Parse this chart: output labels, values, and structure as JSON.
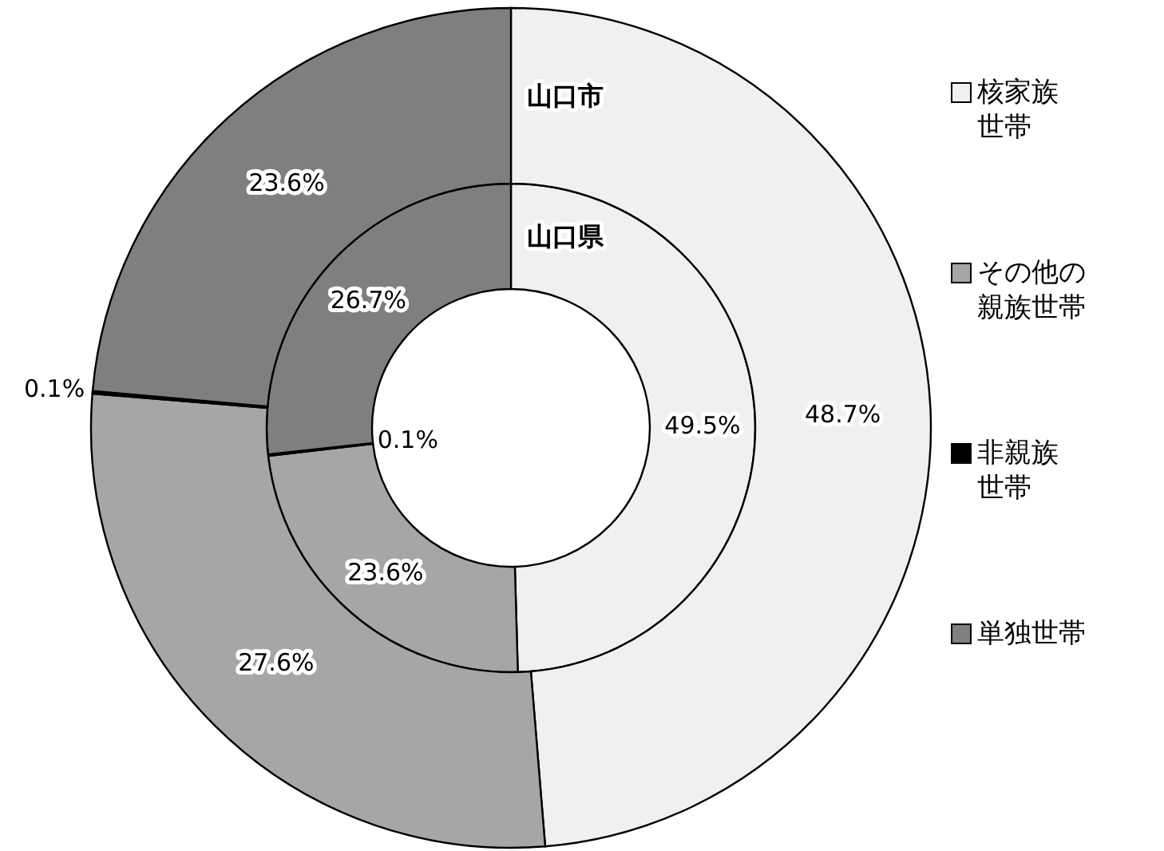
{
  "chart_data": {
    "type": "donut",
    "categories": [
      "核家族世帯",
      "その他の親族世帯",
      "非親族世帯",
      "単独世帯"
    ],
    "colors": [
      "#f0f0f0",
      "#a6a6a6",
      "#000000",
      "#7f7f7f"
    ],
    "series": [
      {
        "name": "山口県",
        "values": [
          49.5,
          23.6,
          0.1,
          26.7
        ],
        "value_labels": [
          "49.5%",
          "23.6%",
          "0.1%",
          "26.7%"
        ]
      },
      {
        "name": "山口市",
        "values": [
          48.7,
          27.6,
          0.1,
          23.6
        ],
        "value_labels": [
          "48.7%",
          "27.6%",
          "0.1%",
          "23.6%"
        ]
      }
    ],
    "legend": "right"
  }
}
